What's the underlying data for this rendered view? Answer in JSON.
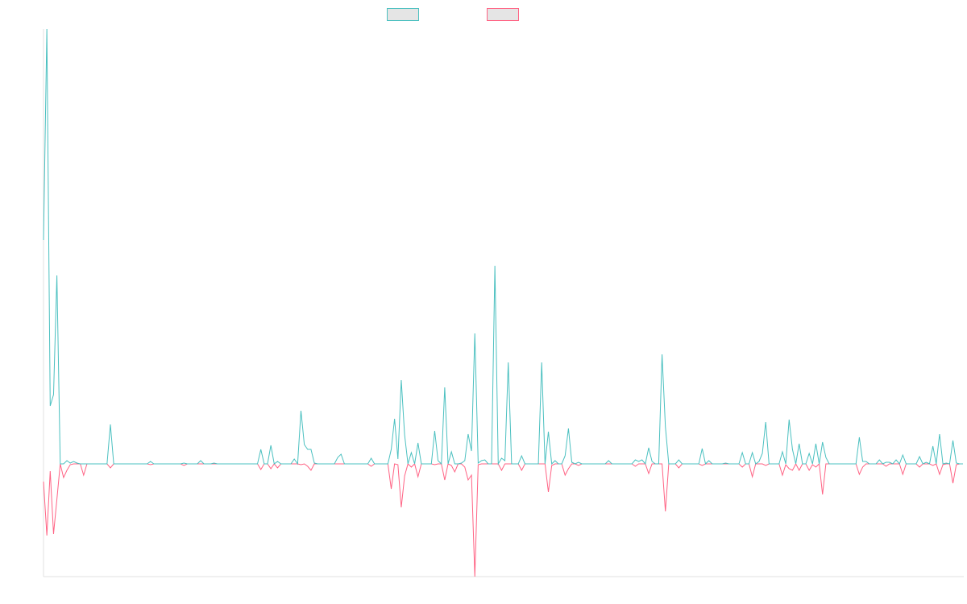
{
  "chart_data": {
    "type": "line",
    "title": "",
    "xlabel": "",
    "ylabel": "",
    "x_count": 276,
    "xlim": [
      0,
      275
    ],
    "ylim": [
      -140,
      540
    ],
    "grid": false,
    "legend_position": "top-center",
    "series": [
      {
        "name": "",
        "color": "#4bc0c0",
        "points": [
          [
            0,
            278
          ],
          [
            1,
            540
          ],
          [
            2,
            72
          ],
          [
            3,
            86
          ],
          [
            4,
            234
          ],
          [
            5,
            0
          ],
          [
            7,
            4
          ],
          [
            8,
            1
          ],
          [
            9,
            3
          ],
          [
            10,
            1
          ],
          [
            20,
            49
          ],
          [
            32,
            3
          ],
          [
            42,
            1
          ],
          [
            47,
            4
          ],
          [
            51,
            1
          ],
          [
            65,
            18
          ],
          [
            68,
            23
          ],
          [
            70,
            3
          ],
          [
            75,
            6
          ],
          [
            77,
            66
          ],
          [
            78,
            24
          ],
          [
            79,
            18
          ],
          [
            80,
            18
          ],
          [
            81,
            1
          ],
          [
            88,
            8
          ],
          [
            89,
            12
          ],
          [
            98,
            7
          ],
          [
            104,
            18
          ],
          [
            105,
            56
          ],
          [
            106,
            6
          ],
          [
            107,
            104
          ],
          [
            108,
            36
          ],
          [
            110,
            14
          ],
          [
            112,
            26
          ],
          [
            117,
            41
          ],
          [
            118,
            4
          ],
          [
            120,
            95
          ],
          [
            122,
            15
          ],
          [
            125,
            1
          ],
          [
            126,
            4
          ],
          [
            127,
            37
          ],
          [
            128,
            16
          ],
          [
            129,
            162
          ],
          [
            130,
            1
          ],
          [
            131,
            4
          ],
          [
            132,
            5
          ],
          [
            135,
            246
          ],
          [
            137,
            7
          ],
          [
            138,
            4
          ],
          [
            139,
            126
          ],
          [
            143,
            10
          ],
          [
            149,
            126
          ],
          [
            151,
            40
          ],
          [
            153,
            4
          ],
          [
            156,
            10
          ],
          [
            157,
            44
          ],
          [
            158,
            2
          ],
          [
            160,
            2
          ],
          [
            169,
            4
          ],
          [
            177,
            5
          ],
          [
            178,
            3
          ],
          [
            179,
            5
          ],
          [
            181,
            20
          ],
          [
            182,
            3
          ],
          [
            185,
            136
          ],
          [
            186,
            46
          ],
          [
            190,
            5
          ],
          [
            197,
            19
          ],
          [
            199,
            4
          ],
          [
            204,
            1
          ],
          [
            209,
            14
          ],
          [
            212,
            14
          ],
          [
            214,
            3
          ],
          [
            215,
            13
          ],
          [
            216,
            52
          ],
          [
            221,
            15
          ],
          [
            223,
            55
          ],
          [
            224,
            18
          ],
          [
            226,
            25
          ],
          [
            229,
            13
          ],
          [
            231,
            25
          ],
          [
            233,
            27
          ],
          [
            234,
            8
          ],
          [
            244,
            33
          ],
          [
            245,
            3
          ],
          [
            246,
            3
          ],
          [
            250,
            5
          ],
          [
            252,
            2
          ],
          [
            253,
            2
          ],
          [
            255,
            5
          ],
          [
            257,
            11
          ],
          [
            262,
            9
          ],
          [
            264,
            2
          ],
          [
            266,
            22
          ],
          [
            268,
            37
          ],
          [
            270,
            1
          ],
          [
            272,
            29
          ],
          [
            273,
            1
          ]
        ]
      },
      {
        "name": "",
        "color": "#ff6384",
        "points": [
          [
            0,
            -22
          ],
          [
            1,
            -89
          ],
          [
            2,
            -9
          ],
          [
            3,
            -87
          ],
          [
            4,
            -44
          ],
          [
            5,
            0
          ],
          [
            6,
            -17
          ],
          [
            7,
            -8
          ],
          [
            8,
            -1
          ],
          [
            12,
            -14
          ],
          [
            20,
            -5
          ],
          [
            32,
            -1
          ],
          [
            42,
            -2
          ],
          [
            65,
            -7
          ],
          [
            68,
            -6
          ],
          [
            70,
            -5
          ],
          [
            77,
            -1
          ],
          [
            79,
            -3
          ],
          [
            80,
            -8
          ],
          [
            98,
            -3
          ],
          [
            104,
            -31
          ],
          [
            105,
            0
          ],
          [
            106,
            -1
          ],
          [
            107,
            -54
          ],
          [
            108,
            -15
          ],
          [
            110,
            -4
          ],
          [
            112,
            -16
          ],
          [
            117,
            -1
          ],
          [
            120,
            -20
          ],
          [
            122,
            -2
          ],
          [
            123,
            -10
          ],
          [
            126,
            -4
          ],
          [
            127,
            -20
          ],
          [
            128,
            -14
          ],
          [
            129,
            -140
          ],
          [
            130,
            -1
          ],
          [
            137,
            -8
          ],
          [
            143,
            -8
          ],
          [
            151,
            -35
          ],
          [
            152,
            -2
          ],
          [
            156,
            -14
          ],
          [
            157,
            -6
          ],
          [
            160,
            -2
          ],
          [
            177,
            -3
          ],
          [
            181,
            -12
          ],
          [
            186,
            -59
          ],
          [
            190,
            -5
          ],
          [
            197,
            -2
          ],
          [
            209,
            -4
          ],
          [
            212,
            -16
          ],
          [
            216,
            -2
          ],
          [
            221,
            -14
          ],
          [
            222,
            -1
          ],
          [
            223,
            -6
          ],
          [
            224,
            -8
          ],
          [
            226,
            -8
          ],
          [
            229,
            -8
          ],
          [
            230,
            -1
          ],
          [
            231,
            -4
          ],
          [
            233,
            -38
          ],
          [
            244,
            -13
          ],
          [
            245,
            -4
          ],
          [
            252,
            -3
          ],
          [
            257,
            -13
          ],
          [
            262,
            -4
          ],
          [
            266,
            -2
          ],
          [
            268,
            -13
          ],
          [
            269,
            -1
          ],
          [
            272,
            -24
          ],
          [
            273,
            -1
          ]
        ]
      }
    ]
  }
}
